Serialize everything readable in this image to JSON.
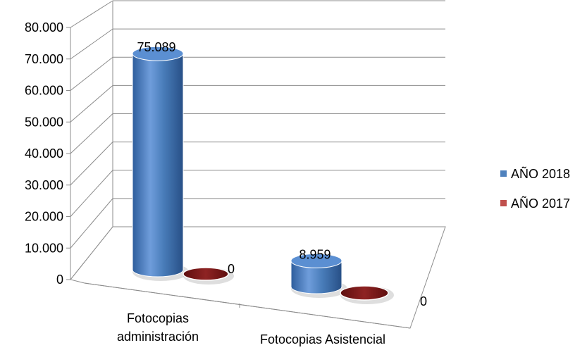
{
  "chart_data": {
    "type": "bar",
    "style": "3d-cylinder",
    "categories": [
      "Fotocopias administración",
      "Fotocopias Asistencial"
    ],
    "category_lines": [
      [
        "Fotocopias",
        "administración"
      ],
      [
        "Fotocopias Asistencial"
      ]
    ],
    "series": [
      {
        "name": "AÑO 2018",
        "values": [
          75089,
          8959
        ],
        "labels": [
          "75.089",
          "8.959"
        ],
        "color": "#4a7ebb"
      },
      {
        "name": "AÑO 2017",
        "values": [
          0,
          0
        ],
        "labels": [
          "0",
          "0"
        ],
        "color": "#8b1a1a"
      }
    ],
    "yticks": [
      0,
      10000,
      20000,
      30000,
      40000,
      50000,
      60000,
      70000,
      80000
    ],
    "ytick_labels": [
      "0",
      "10.000",
      "20.000",
      "30.000",
      "40.000",
      "50.000",
      "60.000",
      "70.000",
      "80.000"
    ],
    "ylim": [
      0,
      80000
    ],
    "grid": true,
    "legend_position": "right"
  }
}
